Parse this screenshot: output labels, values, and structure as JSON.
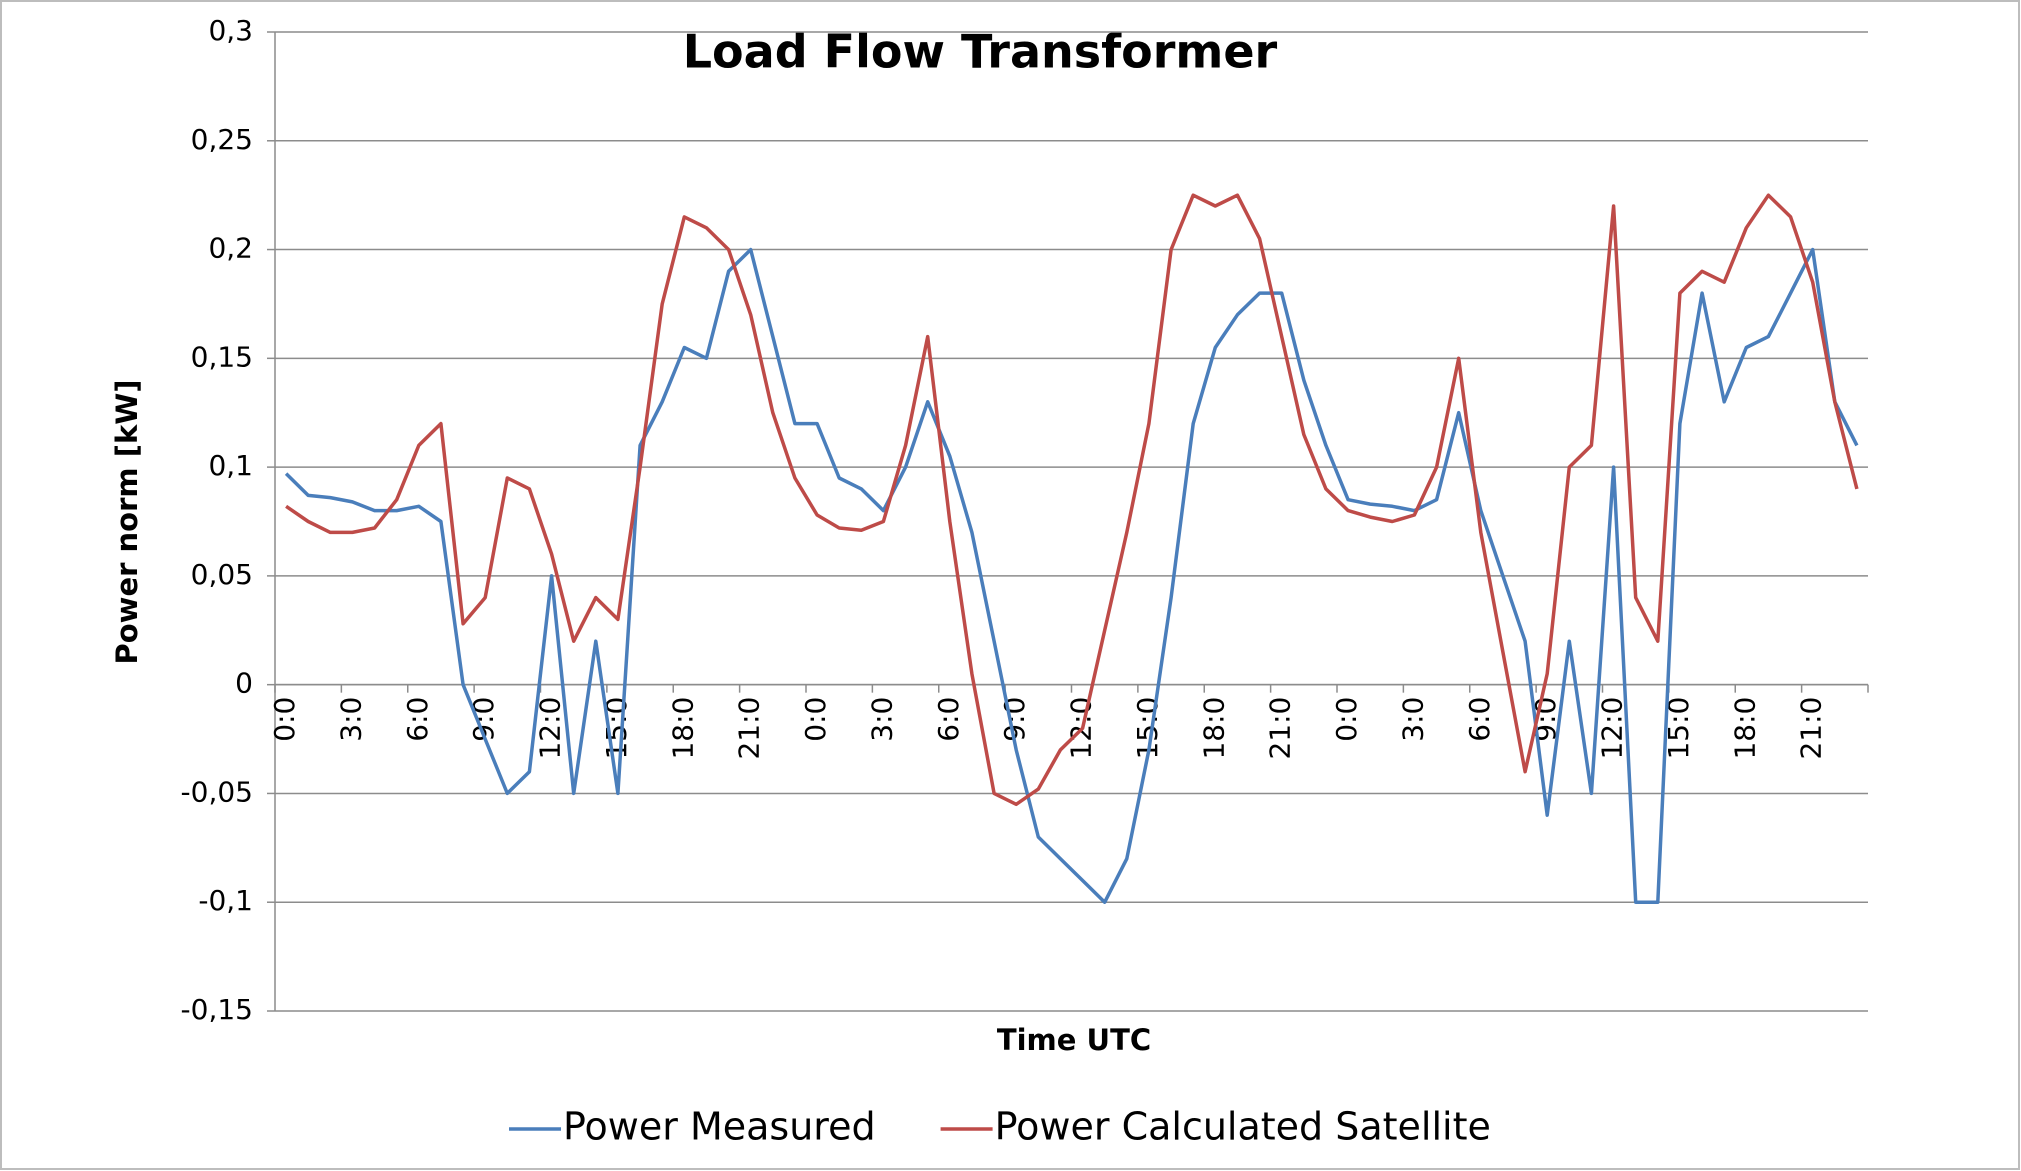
{
  "chart_data": {
    "type": "line",
    "title": "Load Flow Transformer",
    "x_label": "Time UTC",
    "y_label": "Power norm [kW]",
    "categories": [
      "0:0",
      null,
      null,
      "3:0",
      null,
      null,
      "6:0",
      null,
      null,
      "9:0",
      null,
      null,
      "12:0",
      null,
      null,
      "15:0",
      null,
      null,
      "18:0",
      null,
      null,
      "21:0",
      null,
      null,
      "0:0",
      null,
      null,
      "3:0",
      null,
      null,
      "6:0",
      null,
      null,
      "9:0",
      null,
      null,
      "12:0",
      null,
      null,
      "15:0",
      null,
      null,
      "18:0",
      null,
      null,
      "21:0",
      null,
      null,
      "0:0",
      null,
      null,
      "3:0",
      null,
      null,
      "6:0",
      null,
      null,
      "9:0",
      null,
      null,
      "12:0",
      null,
      null,
      "15:0",
      null,
      null,
      "18:0",
      null,
      null,
      "21:0",
      null,
      null
    ],
    "series": [
      {
        "name": "Power Measured",
        "color": "#4a7ebb",
        "values": [
          0.097,
          0.087,
          0.086,
          0.084,
          0.08,
          0.08,
          0.082,
          0.075,
          0.0,
          -0.025,
          -0.05,
          -0.04,
          0.05,
          -0.05,
          0.02,
          -0.05,
          0.11,
          0.13,
          0.155,
          0.15,
          0.19,
          0.2,
          0.16,
          0.12,
          0.12,
          0.095,
          0.09,
          0.08,
          0.1,
          0.13,
          0.105,
          0.07,
          0.02,
          -0.03,
          -0.07,
          -0.08,
          -0.09,
          -0.1,
          -0.08,
          -0.03,
          0.04,
          0.12,
          0.155,
          0.17,
          0.18,
          0.18,
          0.14,
          0.11,
          0.085,
          0.083,
          0.082,
          0.08,
          0.085,
          0.125,
          0.08,
          0.05,
          0.02,
          -0.06,
          0.02,
          -0.05,
          0.1,
          -0.1,
          -0.1,
          0.12,
          0.18,
          0.13,
          0.155,
          0.16,
          0.18,
          0.2,
          0.13,
          0.11
        ]
      },
      {
        "name": "Power Calculated Satellite",
        "color": "#be4b48",
        "values": [
          0.082,
          0.075,
          0.07,
          0.07,
          0.072,
          0.085,
          0.11,
          0.12,
          0.028,
          0.04,
          0.095,
          0.09,
          0.06,
          0.02,
          0.04,
          0.03,
          0.1,
          0.175,
          0.215,
          0.21,
          0.2,
          0.17,
          0.125,
          0.095,
          0.078,
          0.072,
          0.071,
          0.075,
          0.11,
          0.16,
          0.075,
          0.005,
          -0.05,
          -0.055,
          -0.048,
          -0.03,
          -0.02,
          0.025,
          0.07,
          0.12,
          0.2,
          0.225,
          0.22,
          0.225,
          0.205,
          0.16,
          0.115,
          0.09,
          0.08,
          0.077,
          0.075,
          0.078,
          0.1,
          0.15,
          0.07,
          0.015,
          -0.04,
          0.005,
          0.1,
          0.11,
          0.22,
          0.04,
          0.02,
          0.18,
          0.19,
          0.185,
          0.21,
          0.225,
          0.215,
          0.185,
          0.13,
          0.09
        ]
      }
    ],
    "ylim": [
      -0.15,
      0.3
    ],
    "yticks": [
      {
        "value": -0.15,
        "label": "-0,15"
      },
      {
        "value": -0.1,
        "label": "-0,1"
      },
      {
        "value": -0.05,
        "label": "-0,05"
      },
      0,
      {
        "value": 0.05,
        "label": "0,05"
      },
      {
        "value": 0.1,
        "label": "0,1"
      },
      {
        "value": 0.15,
        "label": "0,15"
      },
      {
        "value": 0.2,
        "label": "0,2"
      },
      {
        "value": 0.25,
        "label": "0,25"
      },
      {
        "value": 0.3,
        "label": "0,3"
      }
    ],
    "grid": true,
    "legend": "bottom"
  }
}
